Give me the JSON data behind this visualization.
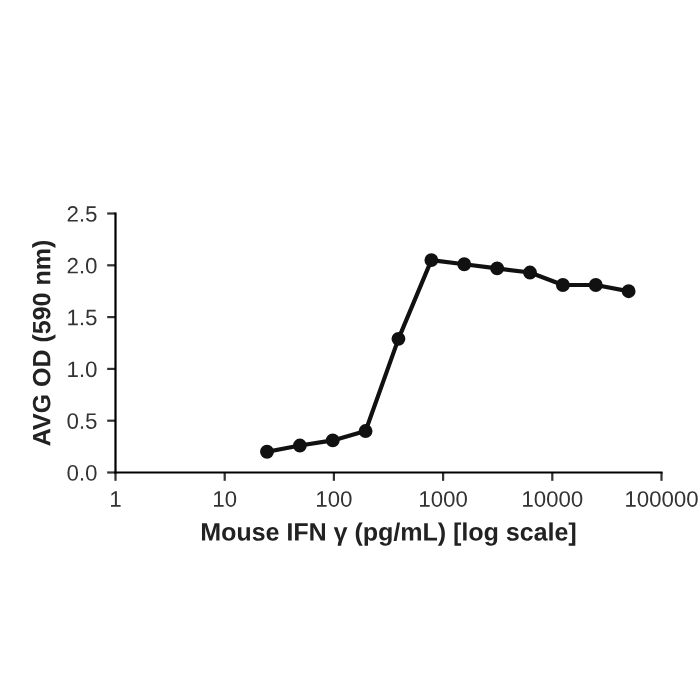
{
  "chart_data": {
    "type": "line",
    "xlabel": "Mouse IFN γ (pg/mL) [log scale]",
    "ylabel": "AVG OD (590 nm)",
    "x": [
      24.4,
      48.8,
      97.6,
      195,
      390,
      781,
      1562,
      3125,
      6250,
      12500,
      25000,
      50000
    ],
    "series": [
      {
        "color": "#111111",
        "values": [
          0.2,
          0.26,
          0.31,
          0.4,
          1.29,
          2.05,
          2.01,
          1.97,
          1.93,
          1.81,
          1.81,
          1.75
        ]
      }
    ],
    "log": "x",
    "xlim": [
      1,
      100000
    ],
    "xticks": [
      1,
      10,
      100,
      1000,
      10000,
      100000
    ],
    "ylim": [
      0,
      2.5
    ],
    "yticks": [
      {
        "value": 0,
        "label": "0.0"
      },
      {
        "value": 0.5,
        "label": "0.5"
      },
      {
        "value": 1,
        "label": "1.0"
      },
      {
        "value": 1.5,
        "label": "1.5"
      },
      {
        "value": 2,
        "label": "2.0"
      },
      {
        "value": 2.5,
        "label": "2.5"
      }
    ],
    "marker": "circle",
    "line_style": "solid",
    "grid": false,
    "legend": false
  }
}
